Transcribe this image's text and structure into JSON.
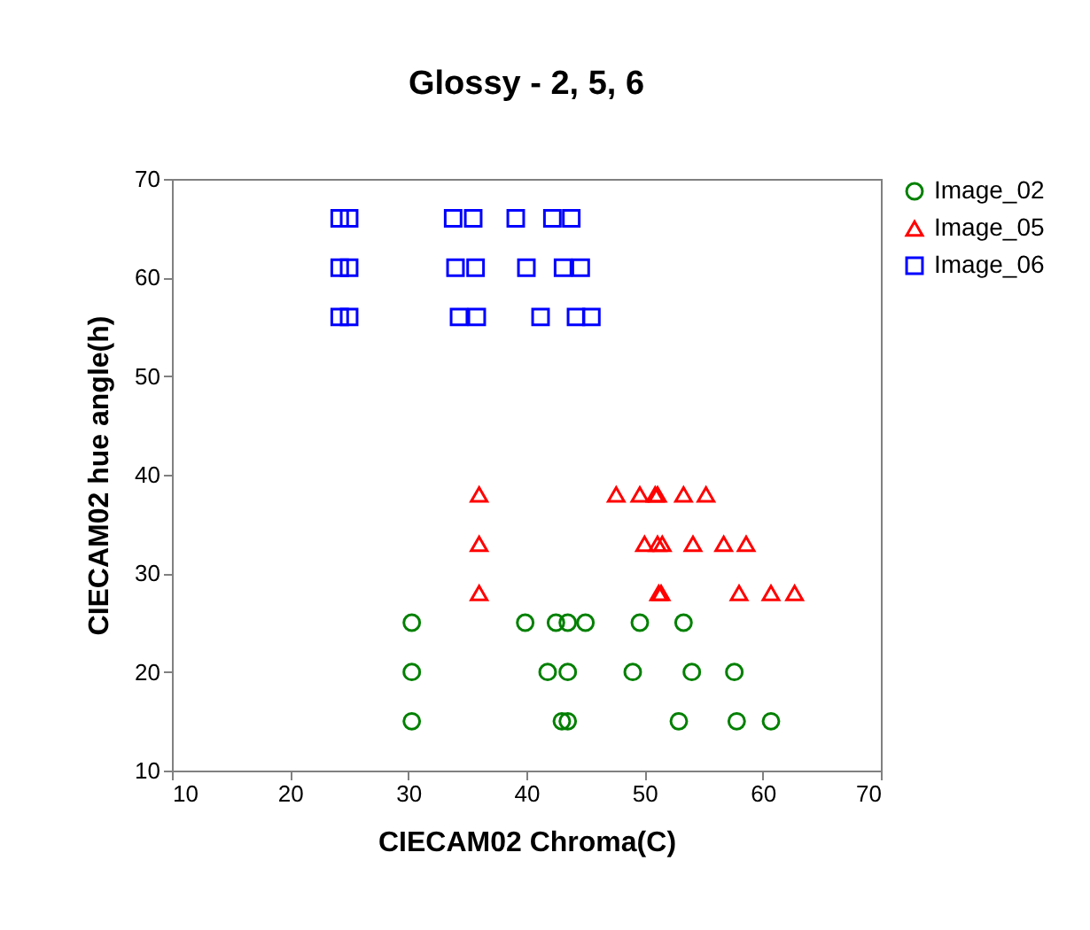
{
  "chart_data": {
    "type": "scatter",
    "title": "Glossy - 2, 5, 6",
    "xlabel": "CIECAM02 Chroma(C)",
    "ylabel": "CIECAM02 hue angle(h)",
    "xlim": [
      10,
      70
    ],
    "xticks": [
      10,
      20,
      30,
      40,
      50,
      60,
      70
    ],
    "ylim": [
      10,
      70
    ],
    "yticks": [
      10,
      20,
      30,
      40,
      50,
      60,
      70
    ],
    "legend": "right",
    "grid": false,
    "series": [
      {
        "name": "Image_02",
        "color": "#008000",
        "marker": "circle",
        "x": [
          30.3,
          39.9,
          42.5,
          43.5,
          45.0,
          49.6,
          53.3,
          30.3,
          41.8,
          43.5,
          49.0,
          54.0,
          57.6,
          30.3,
          43.0,
          43.5,
          52.9,
          57.8,
          60.7
        ],
        "values": [
          25,
          25,
          25,
          25,
          25,
          25,
          25,
          20,
          20,
          20,
          20,
          20,
          20,
          15,
          15,
          15,
          15,
          15,
          15
        ]
      },
      {
        "name": "Image_05",
        "color": "#ff0000",
        "marker": "triangle",
        "x": [
          36.0,
          47.6,
          49.6,
          50.9,
          51.1,
          53.3,
          55.2,
          36.0,
          50.0,
          51.1,
          51.5,
          54.1,
          56.7,
          58.6,
          36.0,
          51.2,
          51.4,
          58.0,
          60.7,
          62.7
        ],
        "values": [
          38,
          38,
          38,
          38,
          38,
          38,
          38,
          33,
          33,
          33,
          33,
          33,
          33,
          33,
          28,
          28,
          28,
          28,
          28,
          28
        ]
      },
      {
        "name": "Image_06",
        "color": "#0000ff",
        "marker": "square",
        "x": [
          24.2,
          25.0,
          33.8,
          35.5,
          39.1,
          42.2,
          43.8,
          24.2,
          25.0,
          34.0,
          35.7,
          40.0,
          43.1,
          44.6,
          24.2,
          25.0,
          34.3,
          35.8,
          41.2,
          44.2,
          45.5
        ],
        "values": [
          66,
          66,
          66,
          66,
          66,
          66,
          66,
          61,
          61,
          61,
          61,
          61,
          61,
          61,
          56,
          56,
          56,
          56,
          56,
          56,
          56
        ]
      }
    ]
  }
}
